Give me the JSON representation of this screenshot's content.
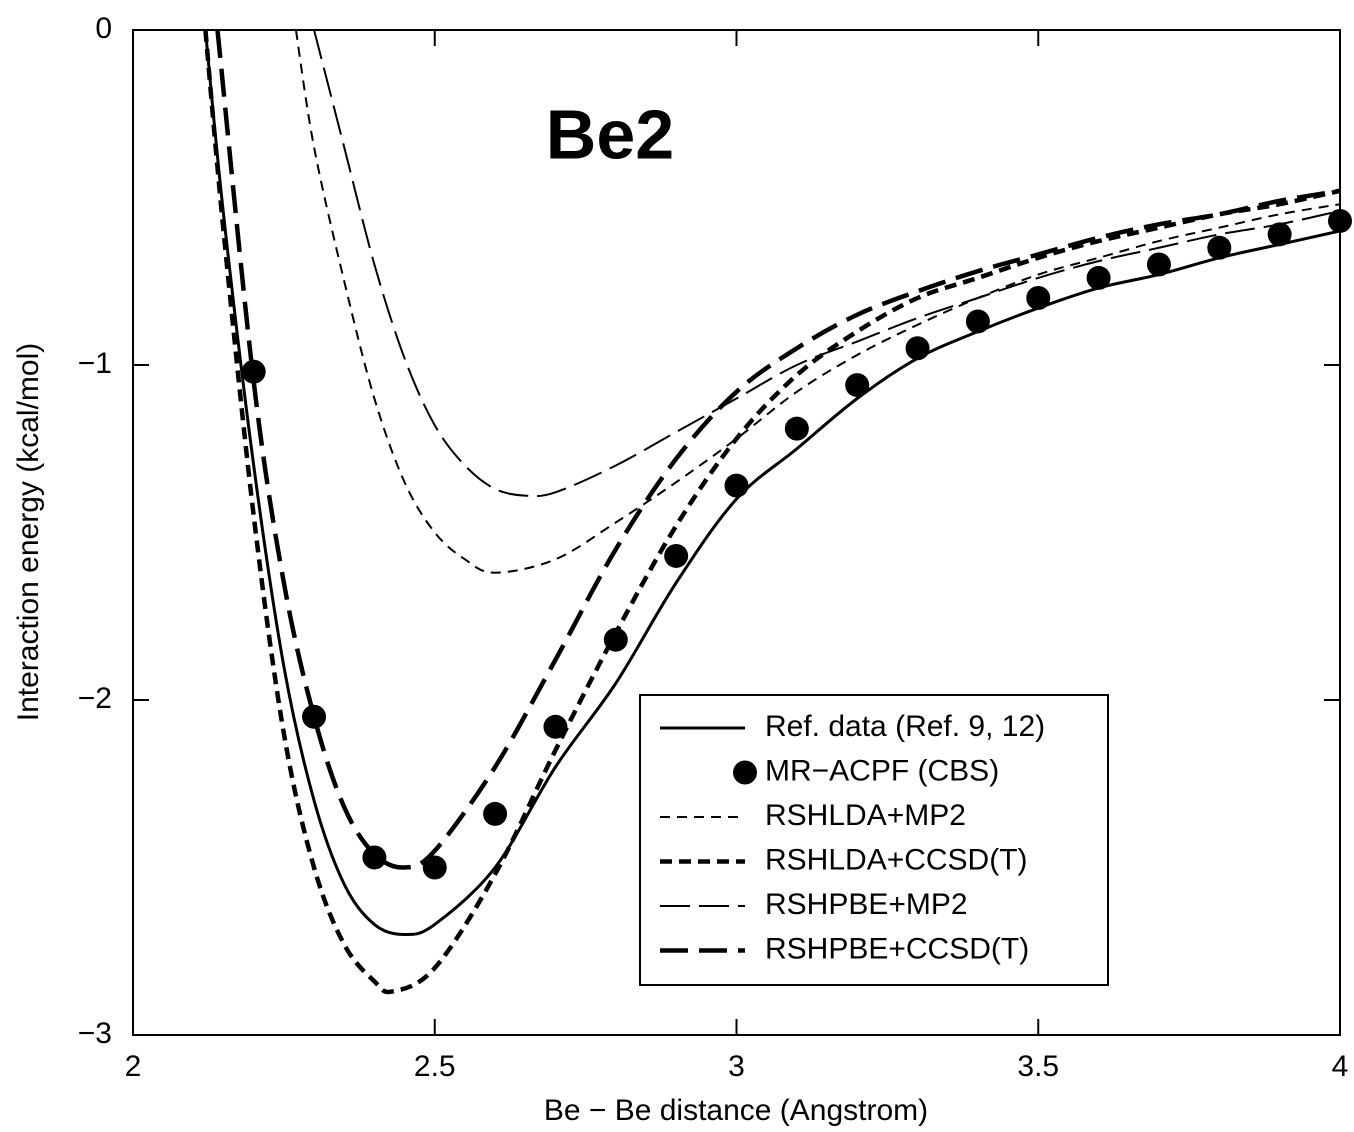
{
  "chart_data": {
    "type": "line",
    "annotation": "Be2",
    "x_label": "Be − Be distance (Angstrom)",
    "y_label": "Interaction energy (kcal/mol)",
    "xlim": [
      2,
      4
    ],
    "ylim": [
      -3,
      0
    ],
    "xticks": [
      2,
      2.5,
      3,
      3.5,
      4
    ],
    "yticks": [
      {
        "value": -3,
        "label": "−3"
      },
      {
        "value": -2,
        "label": "−2"
      },
      {
        "value": -1,
        "label": "−1"
      },
      0
    ],
    "legend": "lower right",
    "series": [
      {
        "name": "Ref. data (Ref. 9, 12)",
        "color": "#000000",
        "style": "solid",
        "x": [
          2.12,
          2.15,
          2.2,
          2.25,
          2.3,
          2.35,
          2.4,
          2.45,
          2.5,
          2.6,
          2.7,
          2.8,
          2.9,
          3.0,
          3.1,
          3.2,
          3.3,
          3.4,
          3.5,
          3.6,
          3.7,
          3.8,
          3.9,
          4.0
        ],
        "values": [
          0,
          -0.55,
          -1.3,
          -1.9,
          -2.3,
          -2.55,
          -2.67,
          -2.7,
          -2.67,
          -2.5,
          -2.2,
          -1.95,
          -1.65,
          -1.4,
          -1.25,
          -1.1,
          -0.98,
          -0.9,
          -0.83,
          -0.77,
          -0.73,
          -0.68,
          -0.64,
          -0.6
        ]
      },
      {
        "name": "MR−ACPF (CBS)",
        "color": "#000000",
        "style": "marker",
        "x": [
          2.2,
          2.3,
          2.4,
          2.5,
          2.6,
          2.7,
          2.8,
          2.9,
          3.0,
          3.1,
          3.2,
          3.3,
          3.4,
          3.5,
          3.6,
          3.7,
          3.8,
          3.9,
          4.0
        ],
        "values": [
          -1.02,
          -2.05,
          -2.47,
          -2.5,
          -2.34,
          -2.08,
          -1.82,
          -1.57,
          -1.36,
          -1.19,
          -1.06,
          -0.95,
          -0.87,
          -0.8,
          -0.74,
          -0.7,
          -0.65,
          -0.61,
          -0.57
        ]
      },
      {
        "name": "RSHLDA+MP2",
        "color": "#000000",
        "style": "short-thin",
        "x": [
          2.27,
          2.3,
          2.35,
          2.4,
          2.45,
          2.5,
          2.55,
          2.6,
          2.7,
          2.8,
          2.9,
          3.0,
          3.1,
          3.2,
          3.3,
          3.4,
          3.5,
          3.6,
          3.7,
          3.8,
          3.9,
          4.0
        ],
        "values": [
          0,
          -0.35,
          -0.75,
          -1.1,
          -1.35,
          -1.5,
          -1.58,
          -1.62,
          -1.58,
          -1.47,
          -1.35,
          -1.22,
          -1.08,
          -0.97,
          -0.88,
          -0.8,
          -0.73,
          -0.68,
          -0.63,
          -0.59,
          -0.55,
          -0.52
        ]
      },
      {
        "name": "RSHLDA+CCSD(T)",
        "color": "#000000",
        "style": "short-thick",
        "x": [
          2.12,
          2.15,
          2.2,
          2.25,
          2.3,
          2.35,
          2.4,
          2.43,
          2.5,
          2.6,
          2.7,
          2.8,
          2.9,
          3.0,
          3.1,
          3.2,
          3.3,
          3.4,
          3.5,
          3.6,
          3.7,
          3.8,
          3.9,
          4.0
        ],
        "values": [
          0,
          -0.6,
          -1.45,
          -2.1,
          -2.5,
          -2.73,
          -2.84,
          -2.87,
          -2.8,
          -2.52,
          -2.15,
          -1.8,
          -1.48,
          -1.22,
          -1.03,
          -0.9,
          -0.8,
          -0.74,
          -0.68,
          -0.63,
          -0.59,
          -0.55,
          -0.52,
          -0.48
        ]
      },
      {
        "name": "RSHPBE+MP2",
        "color": "#000000",
        "style": "long-thin",
        "x": [
          2.3,
          2.35,
          2.4,
          2.45,
          2.5,
          2.55,
          2.6,
          2.65,
          2.7,
          2.8,
          2.9,
          3.0,
          3.1,
          3.2,
          3.3,
          3.4,
          3.5,
          3.6,
          3.7,
          3.8,
          3.9,
          4.0
        ],
        "values": [
          0,
          -0.35,
          -0.7,
          -0.98,
          -1.18,
          -1.3,
          -1.37,
          -1.39,
          -1.38,
          -1.3,
          -1.2,
          -1.1,
          -1.0,
          -0.93,
          -0.86,
          -0.8,
          -0.74,
          -0.69,
          -0.65,
          -0.61,
          -0.58,
          -0.54
        ]
      },
      {
        "name": "RSHPBE+CCSD(T)",
        "color": "#000000",
        "style": "long-thick",
        "x": [
          2.14,
          2.2,
          2.25,
          2.3,
          2.35,
          2.4,
          2.45,
          2.5,
          2.6,
          2.7,
          2.8,
          2.9,
          3.0,
          3.1,
          3.2,
          3.3,
          3.4,
          3.5,
          3.6,
          3.7,
          3.8,
          3.9,
          4.0
        ],
        "values": [
          0,
          -1.05,
          -1.65,
          -2.05,
          -2.32,
          -2.46,
          -2.5,
          -2.45,
          -2.2,
          -1.88,
          -1.55,
          -1.28,
          -1.08,
          -0.95,
          -0.85,
          -0.78,
          -0.72,
          -0.67,
          -0.62,
          -0.58,
          -0.55,
          -0.51,
          -0.48
        ]
      }
    ]
  }
}
